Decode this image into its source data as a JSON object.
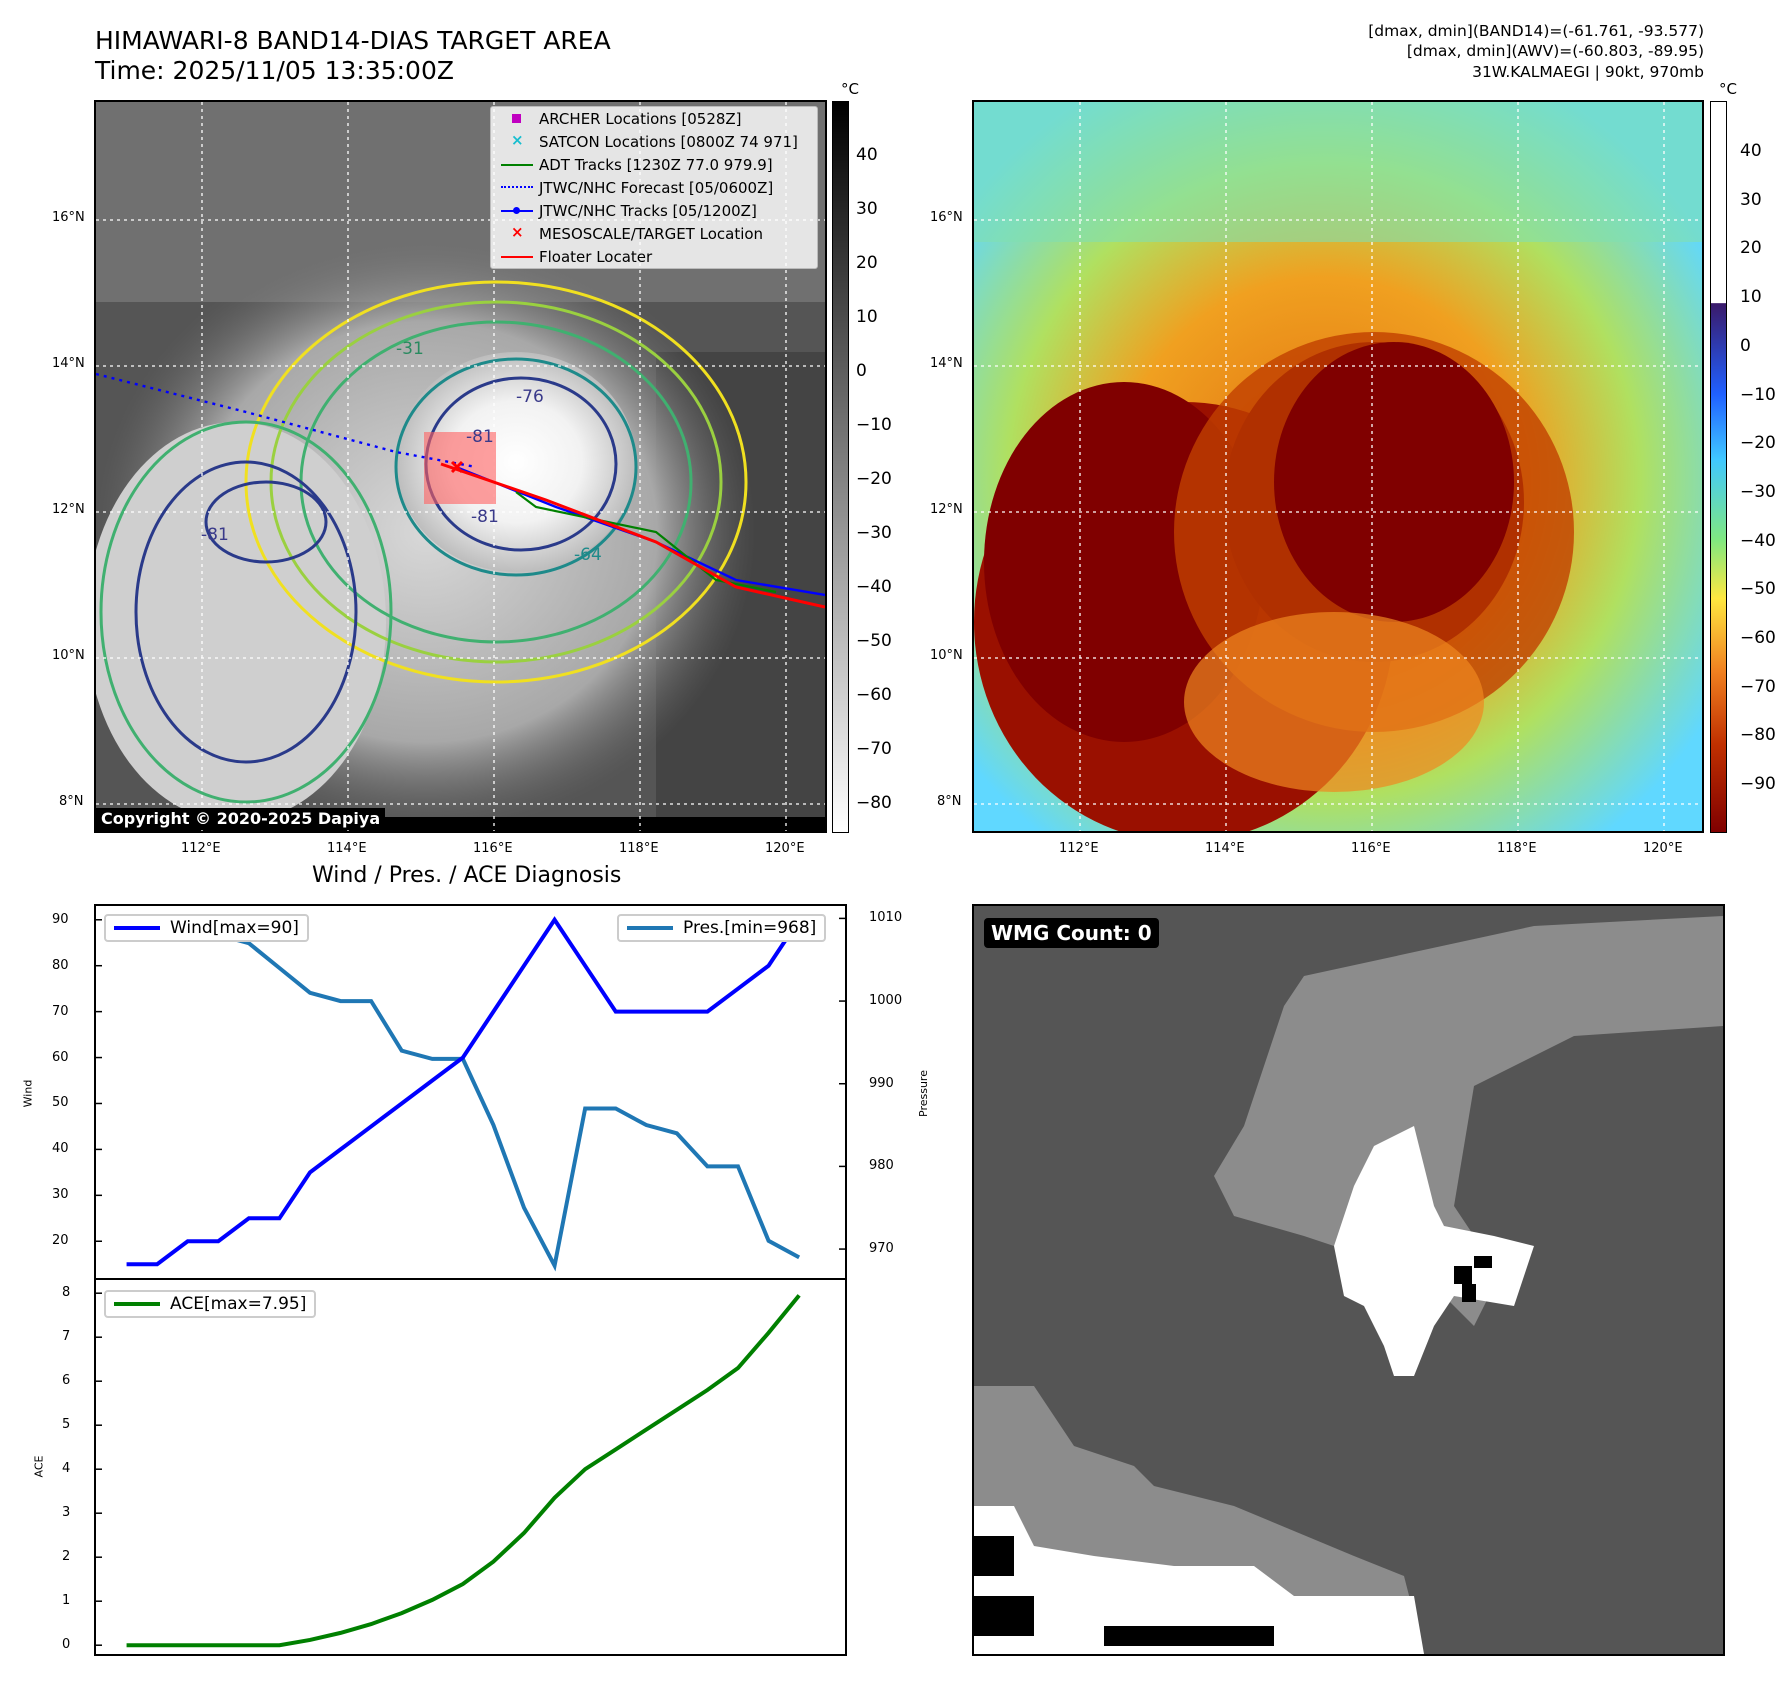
{
  "header": {
    "title_line1": "HIMAWARI-8 BAND14-DIAS TARGET AREA",
    "title_line2": "Time: 2025/11/05 13:35:00Z",
    "info_line1": "[dmax, dmin](BAND14)=(-61.761, -93.577)",
    "info_line2": "[dmax, dmin](AWV)=(-60.803, -89.95)",
    "info_line3": "31W.KALMAEGI | 90kt, 970mb"
  },
  "map": {
    "lat_labels": [
      "16°N",
      "14°N",
      "12°N",
      "10°N",
      "8°N"
    ],
    "lon_labels": [
      "112°E",
      "114°E",
      "116°E",
      "118°E",
      "120°E"
    ],
    "copyright": "Copyright © 2020-2025 Dapiya",
    "contour_labels": [
      "-81",
      "-76",
      "-81",
      "-81",
      "-64",
      "-31"
    ],
    "legend": [
      {
        "label": "ARCHER Locations [0528Z]",
        "color": "#c000c0",
        "marker": "square"
      },
      {
        "label": "SATCON Locations [0800Z 74 971]",
        "color": "#17becf",
        "marker": "x"
      },
      {
        "label": "ADT Tracks [1230Z 77.0 979.9]",
        "color": "#008000",
        "marker": "line"
      },
      {
        "label": "JTWC/NHC Forecast [05/0600Z]",
        "color": "#0000ff",
        "marker": "dotted"
      },
      {
        "label": "JTWC/NHC Tracks [05/1200Z]",
        "color": "#0000ff",
        "marker": "line-dot"
      },
      {
        "label": "MESOSCALE/TARGET Location",
        "color": "#ff0000",
        "marker": "x"
      },
      {
        "label": "Floater Locater",
        "color": "#ff0000",
        "marker": "line"
      }
    ]
  },
  "colorbar_gray": {
    "unit": "°C",
    "ticks": [
      "40",
      "30",
      "20",
      "10",
      "0",
      "−10",
      "−20",
      "−30",
      "−40",
      "−50",
      "−60",
      "−70",
      "−80"
    ]
  },
  "colorbar_color": {
    "unit": "°C",
    "ticks": [
      "40",
      "30",
      "20",
      "10",
      "0",
      "−10",
      "−20",
      "−30",
      "−40",
      "−50",
      "−60",
      "−70",
      "−80",
      "−90"
    ],
    "colors": [
      "#ffffff",
      "#3a1a6a",
      "#2060ff",
      "#40c8ff",
      "#80e880",
      "#ffe840",
      "#f08020",
      "#c03000",
      "#800000"
    ]
  },
  "diagnosis": {
    "title": "Wind / Pres. / ACE Diagnosis",
    "wind_ylabel": "Wind",
    "pres_ylabel": "Pressure",
    "ace_ylabel": "ACE",
    "wind_legend": "Wind[max=90]",
    "pres_legend": "Pres.[min=968]",
    "ace_legend": "ACE[max=7.95]"
  },
  "wmg": {
    "label": "WMG Count: 0"
  },
  "chart_data": [
    {
      "type": "line",
      "title": "Wind / Pres. / ACE Diagnosis",
      "ylabel": "Wind",
      "y2label": "Pressure",
      "ylim": [
        12,
        93
      ],
      "y2lim": [
        966.5,
        1011.5
      ],
      "yticks": [
        20,
        30,
        40,
        50,
        60,
        70,
        80,
        90
      ],
      "y2ticks": [
        970,
        980,
        990,
        1000,
        1010
      ],
      "x": [
        0,
        1,
        2,
        3,
        4,
        5,
        6,
        7,
        8,
        9,
        10,
        11,
        12,
        13,
        14,
        15,
        16,
        17,
        18,
        19,
        20,
        21,
        22
      ],
      "series": [
        {
          "name": "Wind[max=90]",
          "axis": "left",
          "color": "#0000ff",
          "values": [
            15,
            15,
            20,
            20,
            25,
            25,
            35,
            40,
            45,
            50,
            55,
            60,
            70,
            80,
            90,
            80,
            70,
            70,
            70,
            70,
            75,
            80,
            90
          ]
        },
        {
          "name": "Pres.[min=968]",
          "axis": "right",
          "color": "#1f77b4",
          "values": [
            1010,
            1008,
            1008,
            1008,
            1007,
            1004,
            1001,
            1000,
            1000,
            994,
            993,
            993,
            985,
            975,
            968,
            987,
            987,
            985,
            984,
            980,
            980,
            971,
            969
          ]
        }
      ]
    },
    {
      "type": "line",
      "ylabel": "ACE",
      "ylim": [
        -0.2,
        8.3
      ],
      "yticks": [
        0,
        1,
        2,
        3,
        4,
        5,
        6,
        7,
        8
      ],
      "x": [
        0,
        1,
        2,
        3,
        4,
        5,
        6,
        7,
        8,
        9,
        10,
        11,
        12,
        13,
        14,
        15,
        16,
        17,
        18,
        19,
        20,
        21,
        22
      ],
      "series": [
        {
          "name": "ACE[max=7.95]",
          "color": "#008000",
          "values": [
            0,
            0,
            0,
            0,
            0,
            0,
            0.12,
            0.28,
            0.48,
            0.73,
            1.03,
            1.39,
            1.9,
            2.55,
            3.35,
            4.0,
            4.45,
            4.9,
            5.35,
            5.8,
            6.3,
            7.1,
            7.95
          ]
        }
      ]
    }
  ]
}
